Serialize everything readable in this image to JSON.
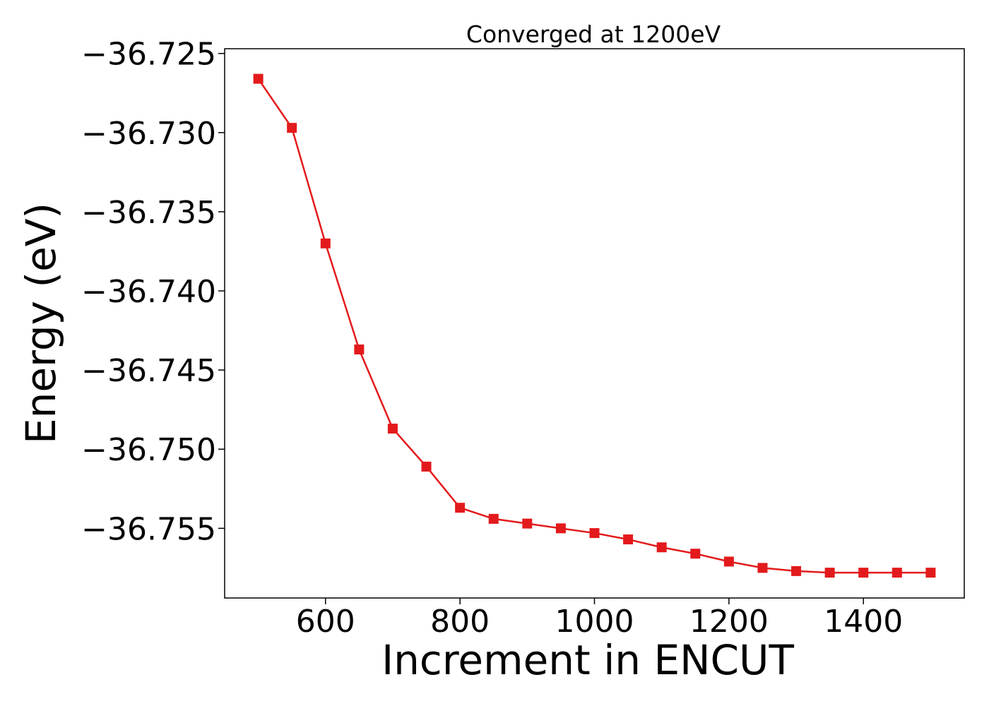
{
  "chart_data": {
    "type": "line",
    "title": "Converged at 1200eV",
    "xlabel": "Increment in ENCUT",
    "ylabel": "Energy (eV)",
    "xlim": [
      450,
      1550
    ],
    "ylim": [
      -36.7594,
      -36.7247
    ],
    "x_ticks": [
      600,
      800,
      1000,
      1200,
      1400
    ],
    "y_ticks": [
      -36.725,
      -36.73,
      -36.735,
      -36.74,
      -36.745,
      -36.75,
      -36.755
    ],
    "x_tick_labels": [
      "600",
      "800",
      "1000",
      "1200",
      "1400"
    ],
    "y_tick_labels": [
      "−36.725",
      "−36.730",
      "−36.735",
      "−36.740",
      "−36.745",
      "−36.750",
      "−36.755"
    ],
    "grid": false,
    "series": [
      {
        "color": "#e31a1c",
        "marker": "square",
        "x": [
          500,
          550,
          600,
          650,
          700,
          750,
          800,
          850,
          900,
          950,
          1000,
          1050,
          1100,
          1150,
          1200,
          1250,
          1300,
          1350,
          1400,
          1450,
          1500
        ],
        "y": [
          -36.7266,
          -36.7297,
          -36.737,
          -36.7437,
          -36.7487,
          -36.7511,
          -36.7537,
          -36.7544,
          -36.7547,
          -36.755,
          -36.7553,
          -36.7557,
          -36.7562,
          -36.7566,
          -36.7571,
          -36.7575,
          -36.7577,
          -36.7578,
          -36.7578,
          -36.7578,
          -36.7578
        ]
      }
    ]
  }
}
